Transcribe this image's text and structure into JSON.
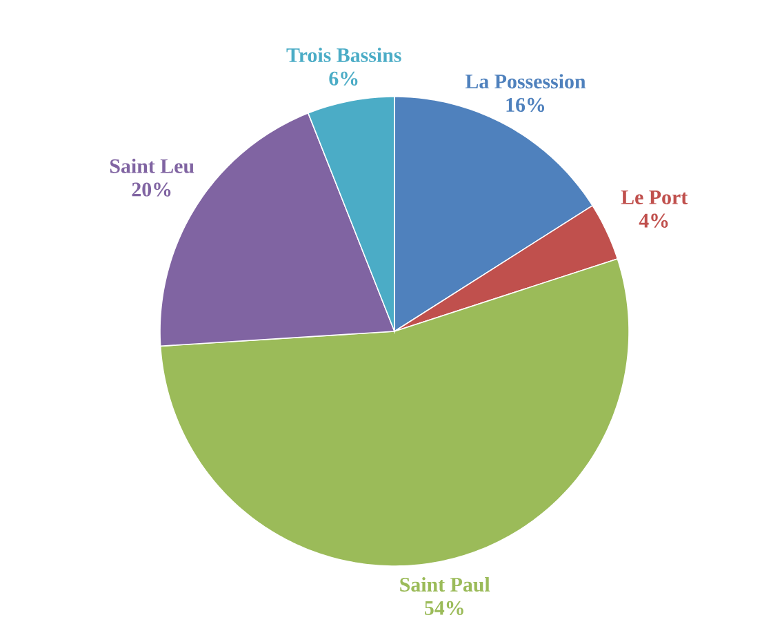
{
  "chart_data": {
    "type": "pie",
    "categories": [
      "La Possession",
      "Le Port",
      "Saint Paul",
      "Saint Leu",
      "Trois Bassins"
    ],
    "values": [
      16,
      4,
      54,
      20,
      6
    ],
    "value_labels": [
      "16%",
      "4%",
      "54%",
      "20%",
      "6%"
    ],
    "colors": [
      "#4f81bd",
      "#c0504d",
      "#9bbb59",
      "#8064a2",
      "#4bacc6"
    ]
  }
}
